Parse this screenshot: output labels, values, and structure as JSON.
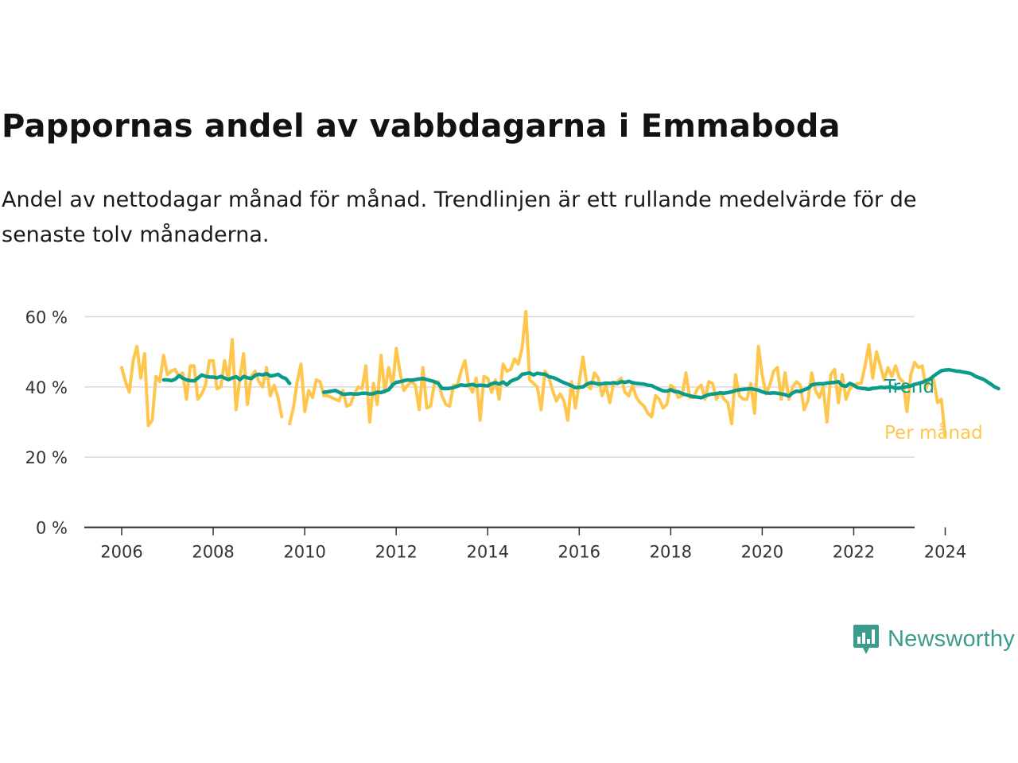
{
  "title": "Pappornas andel av vabbdagarna i Emmaboda",
  "subtitle": "Andel av nettodagar månad för månad. Trendlinjen är ett rullande medelvärde för de senaste tolv månaderna.",
  "brand": {
    "name": "Newsworthy",
    "icon": "newsworthy-logo-icon",
    "color": "#3b9b8f"
  },
  "chart_data": {
    "type": "line",
    "title": "Pappornas andel av vabbdagarna i Emmaboda",
    "subtitle": "Andel av nettodagar månad för månad. Trendlinjen är ett rullande medelvärde för de senaste tolv månaderna.",
    "xlabel": "",
    "ylabel": "",
    "xlim": [
      2005.7,
      2025.3
    ],
    "ylim": [
      0,
      60
    ],
    "grid": true,
    "legend": "direct labels at line ends (right)",
    "x_ticks": [
      2006,
      2008,
      2010,
      2012,
      2014,
      2016,
      2018,
      2020,
      2022,
      2024
    ],
    "x_tick_labels": [
      "2006",
      "2008",
      "2010",
      "2012",
      "2014",
      "2016",
      "2018",
      "2020",
      "2022",
      "2024"
    ],
    "y_ticks": [
      0,
      20,
      40,
      60
    ],
    "y_tick_labels": [
      "0 %",
      "20 %",
      "40 %",
      "60 %"
    ],
    "series": [
      {
        "name": "Per månad",
        "color": "#ffc64d",
        "segments": [
          {
            "x_start": 2006.0,
            "step": 0.0833,
            "values": [
              45.5,
              41.5,
              38.5,
              47.5,
              51.5,
              42.5,
              49.5,
              29,
              30.5,
              43,
              41.5,
              49,
              43.5,
              44.5,
              45,
              43,
              44,
              36.5,
              46,
              46,
              36.5,
              38,
              40.5,
              47.5,
              47.5,
              39.5,
              40,
              47.5,
              42,
              53.5,
              33.5,
              42.5,
              49.5,
              35,
              43,
              44.5,
              41.5,
              40,
              45.5,
              37.5,
              40.5,
              37,
              31.5
            ]
          },
          {
            "x_start": 2009.67,
            "step": 0.0833,
            "values": [
              29.5,
              34,
              41.5,
              46.5,
              33,
              39,
              37,
              42,
              41.5,
              37.5,
              37.5,
              37,
              36.5,
              36,
              39,
              34.5,
              35,
              38,
              40,
              39.5,
              46,
              30,
              41,
              35,
              49,
              38.5,
              45.5,
              40,
              51,
              44,
              39,
              40.5,
              41.5,
              40.5,
              33.5,
              45.5,
              34,
              34.5,
              41,
              41.5,
              37.5,
              35,
              34.5,
              40.5,
              40.5,
              44.5,
              47.5,
              40.5,
              38.5,
              42.5,
              30.5,
              43,
              42.5,
              38.5,
              42,
              36.5,
              46.5,
              44.5,
              45,
              48,
              46.5,
              51,
              61.5,
              42,
              41,
              40,
              33.5,
              44.5,
              43,
              39,
              36,
              38,
              36,
              30.5,
              41.5,
              34,
              41.5,
              48.5,
              40.5,
              39.5,
              44,
              42.5,
              37.5,
              40.5,
              35.5,
              41,
              41.5,
              42.5,
              38.5,
              37.5,
              40.5,
              37,
              35.5,
              34.5,
              32.5,
              31.5,
              37.5,
              36.5,
              34,
              35,
              40.5,
              39.5,
              37,
              37.5,
              44,
              37,
              37,
              39.5,
              40.5,
              36.5,
              41.5,
              41,
              36.5,
              38.5,
              36.5,
              35.5,
              29.5,
              43.5,
              37.5,
              36.5,
              36.5,
              41,
              32.5,
              51.5,
              43.5,
              38,
              40.5,
              44.5,
              45.5,
              36.5,
              44,
              36.5,
              40,
              41.5,
              40.5,
              33.5,
              36,
              44,
              39,
              37,
              40,
              30,
              43.5,
              45,
              35.5,
              43.5,
              36.5,
              39.5,
              40.5,
              41,
              41,
              46,
              52,
              42.5,
              50,
              46,
              42,
              45.5,
              43,
              46,
              42.5,
              41.5,
              33,
              43.5,
              47,
              45.5,
              46,
              39.5,
              42.5,
              42,
              35.5,
              36.5,
              26
            ]
          }
        ]
      },
      {
        "name": "Trend",
        "color": "#0b9b8a",
        "segments": [
          {
            "x_start": 2006.92,
            "step": 0.0833,
            "values": [
              42,
              42,
              41.8,
              42.2,
              43.2,
              42.5,
              42,
              41.8,
              41.7,
              42.6,
              43.4,
              43,
              42.8,
              42.8,
              42.6,
              43,
              42.5,
              42.1,
              42.6,
              42.9,
              42.1,
              43,
              42.6,
              42.4,
              43.3,
              43.6,
              43.4,
              43.8,
              43.1,
              43.3,
              43.6,
              42.8,
              42.4,
              41
            ]
          },
          {
            "x_start": 2010.42,
            "step": 0.0833,
            "values": [
              38.5,
              38.6,
              38.8,
              39,
              38.5,
              37.9,
              38,
              38.1,
              38,
              38,
              38.2,
              38.2,
              38,
              38.1,
              38.5,
              38.4,
              38.8,
              39.2,
              40.6,
              41.3,
              41.5,
              41.8,
              42,
              41.9,
              42.1,
              42.3,
              42.4,
              42.1,
              41.8,
              41.5,
              41,
              39.6,
              39.5,
              39.6,
              39.8,
              40.2,
              40.6,
              40.4,
              40.5,
              40.7,
              40.3,
              40.5,
              40.4,
              40.3,
              40.9,
              41.2,
              40.8,
              41.4,
              40.6,
              41.6,
              42.1,
              42.5,
              43.6,
              43.8,
              44,
              43.4,
              43.9,
              43.7,
              43.6,
              42.9,
              42.7,
              42.3,
              41.7,
              41.2,
              40.8,
              40.3,
              39.8,
              39.9,
              40,
              40.8,
              41.2,
              41.1,
              40.8,
              40.9,
              41.1,
              41,
              41.2,
              41,
              41.5,
              41.3,
              41.6,
              41.2,
              41,
              40.9,
              40.8,
              40.5,
              40.4,
              39.8,
              39.3,
              38.9,
              38.8,
              39.2,
              38.7,
              38.6,
              38.1,
              37.8,
              37.5,
              37.2,
              37.1,
              36.9,
              37.4,
              37.8,
              38,
              38.1,
              38.3,
              38.2,
              38.4,
              38.6,
              39,
              39.2,
              39.3,
              39.4,
              39.5,
              39.3,
              39.1,
              38.6,
              38.3,
              38.2,
              38.3,
              38.2,
              38,
              37.8,
              37.4,
              38.3,
              38.8,
              38.7,
              39.2,
              39.6,
              40.6,
              40.8,
              40.9,
              40.9,
              41.1,
              41.2,
              41.3,
              41.5,
              40.4,
              40.2,
              41,
              40.5,
              39.8,
              39.6,
              39.5,
              39.3,
              39.6,
              39.7,
              39.9,
              39.8,
              39.9,
              40,
              39.6,
              39.7,
              39.9,
              40.1,
              40.3,
              40.7,
              41,
              41.3,
              41.8,
              42.2,
              43.1,
              43.9,
              44.6,
              44.8,
              44.9,
              44.7,
              44.5,
              44.4,
              44.2,
              44,
              43.7,
              43,
              42.6,
              42.2,
              41.5,
              40.8,
              40,
              39.5
            ]
          }
        ]
      }
    ]
  }
}
